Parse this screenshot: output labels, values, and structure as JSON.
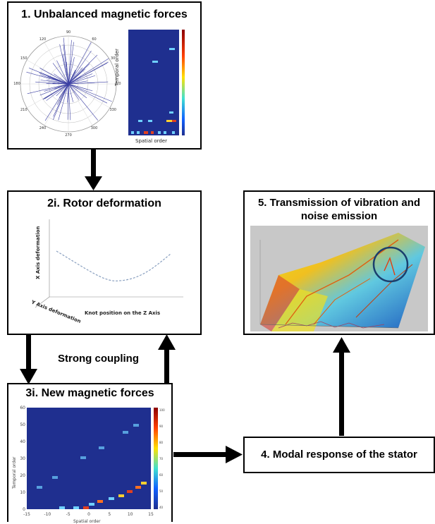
{
  "boxes": {
    "box1": {
      "title": "1. Unbalanced magnetic forces"
    },
    "box2": {
      "title": "2i. Rotor deformation"
    },
    "box3": {
      "title": "3i. New magnetic forces"
    },
    "box4": {
      "title": "4. Modal response of the stator"
    },
    "box5": {
      "title_line1": "5. Transmission of vibration and",
      "title_line2": "noise emission"
    }
  },
  "coupling_label": "Strong coupling",
  "polar": {
    "angle_labels": [
      "90",
      "120",
      "60",
      "150",
      "30",
      "180",
      "0",
      "210",
      "330",
      "240",
      "300",
      "270"
    ]
  },
  "heatmap1": {
    "xlabel": "Spatial order",
    "ylabel": "Temporal order"
  },
  "rotor_plot": {
    "xlabel": "Knot position on the Z Axis",
    "ylabel": "X Axis deformation",
    "zlabel": "Y Axis deformation"
  },
  "heatmap3": {
    "xlabel": "Spatial order",
    "ylabel": "Temporal order",
    "x_ticks": [
      "-15",
      "-10",
      "-5",
      "0",
      "5",
      "10",
      "15"
    ],
    "y_ticks": [
      "60",
      "50",
      "40",
      "30",
      "20",
      "10",
      "0"
    ],
    "colorbar_ticks": [
      "100",
      "90",
      "80",
      "70",
      "60",
      "50",
      "40"
    ]
  },
  "colors": {
    "arrow": "#000000",
    "heatmap_bg": "#1f2f8f",
    "circle": "#1a3f6e"
  }
}
